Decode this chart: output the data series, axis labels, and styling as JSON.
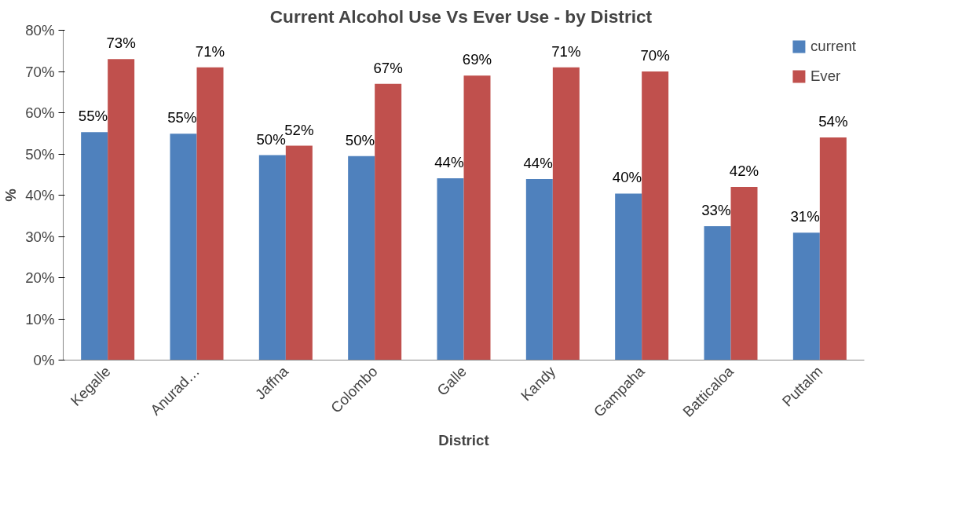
{
  "chart_data": {
    "type": "bar",
    "title": "Current Alcohol Use Vs Ever Use  - by District",
    "xlabel": "District",
    "ylabel": "%",
    "categories": [
      "Kegalle",
      "Anurad…",
      "Jaffna",
      "Colombo",
      "Galle",
      "Kandy",
      "Gampaha",
      "Batticaloa",
      "Puttalm"
    ],
    "series": [
      {
        "name": "current",
        "color": "#4f81bd",
        "values": [
          55.3,
          54.9,
          49.7,
          49.5,
          44.1,
          43.9,
          40.4,
          32.5,
          30.9
        ],
        "value_labels": [
          "55%",
          "55%",
          "50%",
          "50%",
          "44%",
          "44%",
          "40%",
          "33%",
          "31%"
        ]
      },
      {
        "name": "Ever",
        "color": "#c0504d",
        "values": [
          73,
          71,
          52,
          67,
          69,
          71,
          70,
          42,
          54
        ],
        "value_labels": [
          "73%",
          "71%",
          "52%",
          "67%",
          "69%",
          "71%",
          "70%",
          "42%",
          "54%"
        ]
      }
    ],
    "ylim": [
      0,
      80
    ],
    "yticks": [
      {
        "value": 0,
        "label": "0%"
      },
      {
        "value": 10,
        "label": "10%"
      },
      {
        "value": 20,
        "label": "20%"
      },
      {
        "value": 30,
        "label": "30%"
      },
      {
        "value": 40,
        "label": "40%"
      },
      {
        "value": 50,
        "label": "50%"
      },
      {
        "value": 60,
        "label": "60%"
      },
      {
        "value": 70,
        "label": "70%"
      },
      {
        "value": 80,
        "label": "80%"
      }
    ],
    "grid": false,
    "legend": "top right"
  }
}
